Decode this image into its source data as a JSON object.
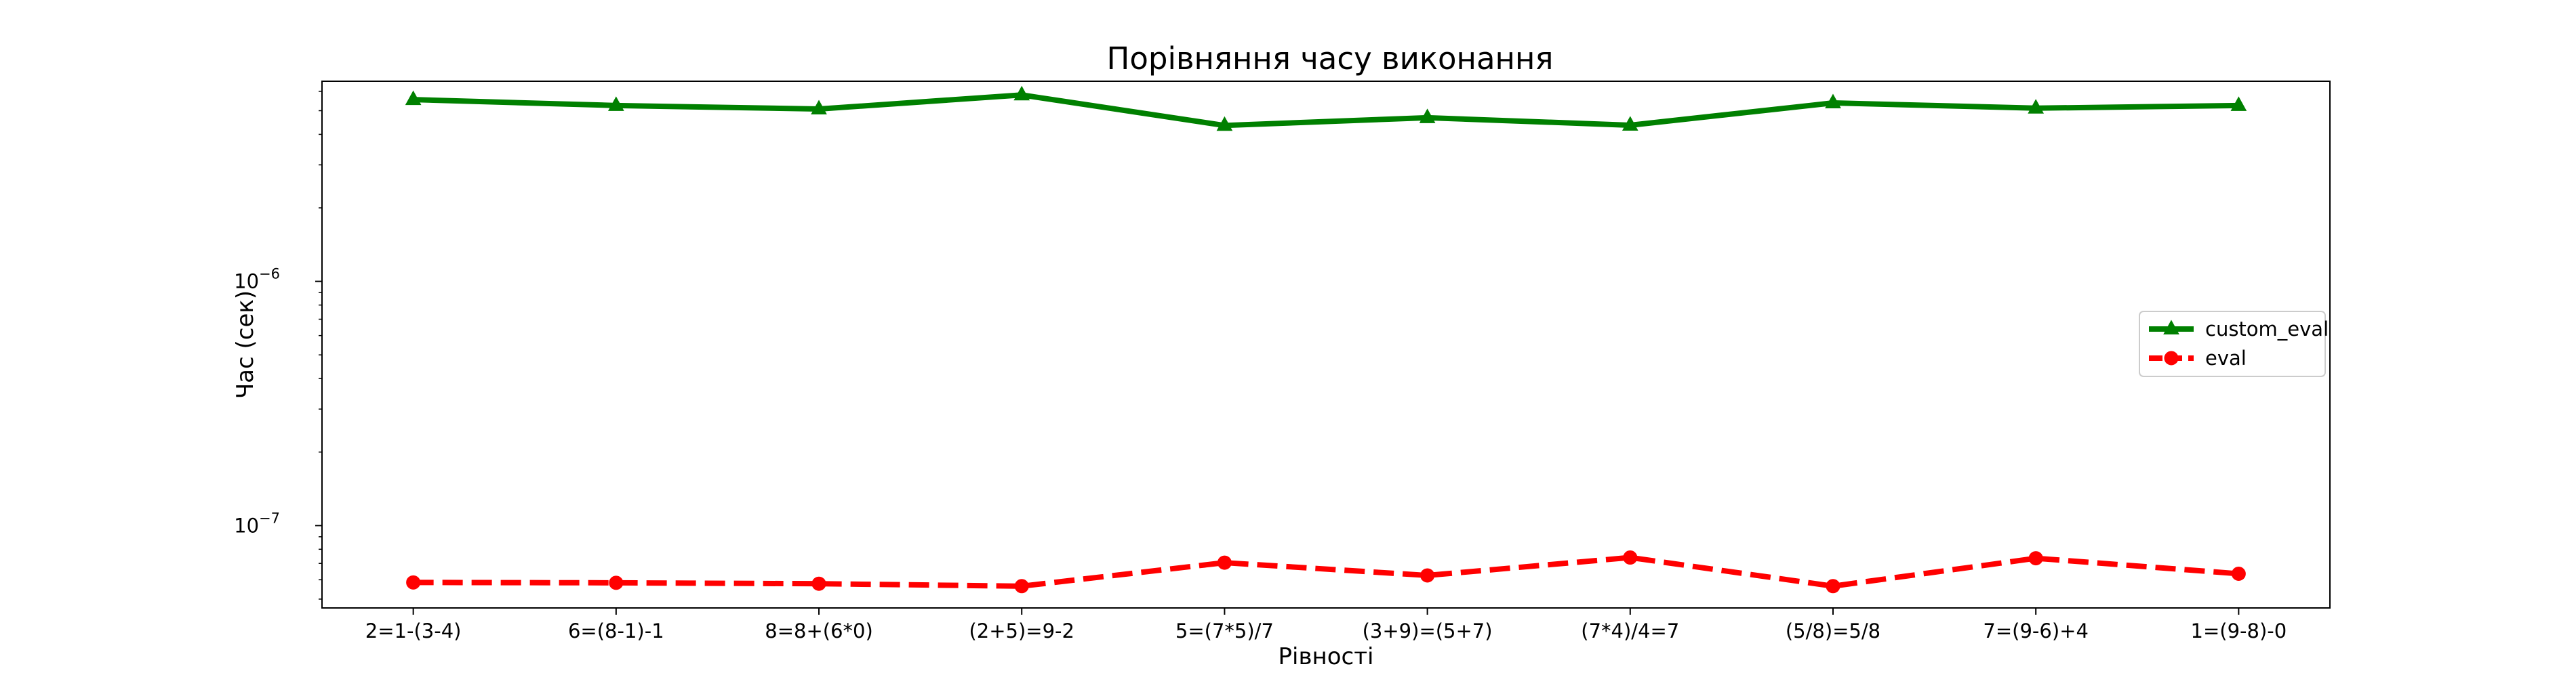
{
  "chart_data": {
    "type": "line",
    "title": "Порівняння часу виконання",
    "xlabel": "Рівності",
    "ylabel": "Час (сек)",
    "yscale": "log",
    "ylim": [
      4.6e-08,
      6.6e-06
    ],
    "grid": false,
    "legend_position": "center-right",
    "categories": [
      "2=1-(3-4)",
      "6=(8-1)-1",
      "8=8+(6*0)",
      "(2+5)=9-2",
      "5=(7*5)/7",
      "(3+9)=(5+7)",
      "(7*4)/4=7",
      "(5/8)=5/8",
      "7=(9-6)+4",
      "1=(9-8)-0"
    ],
    "y_ticks": [
      {
        "value": 1e-07,
        "label": "10",
        "exp": "−7"
      },
      {
        "value": 1e-06,
        "label": "10",
        "exp": "−6"
      }
    ],
    "series": [
      {
        "name": "custom_eval",
        "color": "#008000",
        "style": "solid",
        "marker": "triangle",
        "values": [
          5.55e-06,
          5.25e-06,
          5.08e-06,
          5.8e-06,
          4.35e-06,
          4.68e-06,
          4.36e-06,
          5.38e-06,
          5.12e-06,
          5.25e-06
        ]
      },
      {
        "name": "eval",
        "color": "#ff0000",
        "style": "dashed",
        "marker": "circle",
        "values": [
          5.85e-08,
          5.83e-08,
          5.78e-08,
          5.65e-08,
          7.05e-08,
          6.25e-08,
          7.4e-08,
          5.65e-08,
          7.35e-08,
          6.35e-08
        ]
      }
    ]
  }
}
